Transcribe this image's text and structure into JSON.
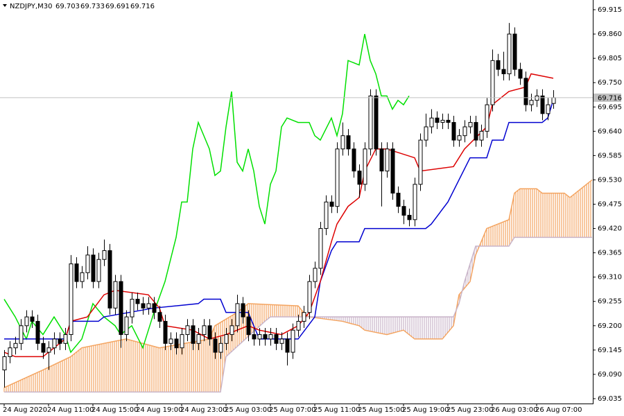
{
  "chart_data": {
    "type": "candlestick",
    "title": "NZDJPY,M30",
    "ohlc_header": [
      69.703,
      69.733,
      69.691,
      69.716
    ],
    "open": [
      69.1,
      69.13,
      69.15,
      69.16,
      69.2,
      69.22,
      69.21,
      69.16,
      69.14,
      69.15,
      69.17,
      69.16,
      69.18,
      69.34,
      69.3,
      69.32,
      69.36,
      69.3,
      69.35,
      69.37,
      69.24,
      69.3,
      69.18,
      69.22,
      69.26,
      69.25,
      69.24,
      69.25,
      69.23,
      69.21,
      69.16,
      69.17,
      69.15,
      69.18,
      69.2,
      69.16,
      69.18,
      69.2,
      69.17,
      69.14,
      69.16,
      69.18,
      69.2,
      69.25,
      69.22,
      69.18,
      69.17,
      69.18,
      69.17,
      69.18,
      69.16,
      69.17,
      69.14,
      69.19,
      69.21,
      69.23,
      69.3,
      69.33,
      69.42,
      69.48,
      69.47,
      69.6,
      69.63,
      69.6,
      69.55,
      69.52,
      69.6,
      69.72,
      69.6,
      69.55,
      69.6,
      69.5,
      69.47,
      69.45,
      69.44,
      69.52,
      69.62,
      69.65,
      69.67,
      69.66,
      69.665,
      69.66,
      69.62,
      69.63,
      69.65,
      69.66,
      69.62,
      69.64,
      69.7,
      69.8,
      69.78,
      69.77,
      69.86,
      69.78,
      69.76,
      69.7,
      69.71,
      69.72,
      69.68,
      69.703
    ],
    "high": [
      69.145,
      69.165,
      69.175,
      69.215,
      69.235,
      69.235,
      69.225,
      69.175,
      69.165,
      69.185,
      69.185,
      69.195,
      69.36,
      69.355,
      69.335,
      69.38,
      69.375,
      69.365,
      69.395,
      69.385,
      69.315,
      69.315,
      69.235,
      69.275,
      69.275,
      69.265,
      69.265,
      69.265,
      69.245,
      69.225,
      69.185,
      69.185,
      69.195,
      69.215,
      69.215,
      69.195,
      69.215,
      69.215,
      69.185,
      69.175,
      69.195,
      69.215,
      69.27,
      69.265,
      69.235,
      69.195,
      69.195,
      69.195,
      69.195,
      69.195,
      69.185,
      69.185,
      69.205,
      69.225,
      69.245,
      69.315,
      69.345,
      69.435,
      69.495,
      69.495,
      69.615,
      69.66,
      69.645,
      69.615,
      69.565,
      69.615,
      69.735,
      69.735,
      69.615,
      69.615,
      69.615,
      69.515,
      69.485,
      69.465,
      69.535,
      69.635,
      69.68,
      69.69,
      69.685,
      69.68,
      69.68,
      69.675,
      69.645,
      69.665,
      69.675,
      69.675,
      69.655,
      69.715,
      69.825,
      69.815,
      69.82,
      69.885,
      69.875,
      69.795,
      69.775,
      69.725,
      69.735,
      69.735,
      69.715,
      69.733
    ],
    "low": [
      69.06,
      69.115,
      69.135,
      69.145,
      69.185,
      69.195,
      69.145,
      69.125,
      69.1,
      69.135,
      69.145,
      69.145,
      69.165,
      69.285,
      69.285,
      69.305,
      69.285,
      69.285,
      69.335,
      69.225,
      69.225,
      69.15,
      69.165,
      69.205,
      69.235,
      69.225,
      69.225,
      69.215,
      69.195,
      69.145,
      69.145,
      69.135,
      69.135,
      69.165,
      69.145,
      69.145,
      69.165,
      69.155,
      69.125,
      69.125,
      69.145,
      69.165,
      69.185,
      69.205,
      69.165,
      69.155,
      69.155,
      69.155,
      69.155,
      69.145,
      69.145,
      69.11,
      69.125,
      69.175,
      69.195,
      69.215,
      69.285,
      69.315,
      69.405,
      69.455,
      69.455,
      69.585,
      69.585,
      69.535,
      69.49,
      69.505,
      69.585,
      69.585,
      69.47,
      69.535,
      69.485,
      69.455,
      69.43,
      69.425,
      69.425,
      69.505,
      69.605,
      69.635,
      69.645,
      69.645,
      69.645,
      69.605,
      69.605,
      69.615,
      69.635,
      69.605,
      69.605,
      69.625,
      69.685,
      69.765,
      69.755,
      69.755,
      69.765,
      69.745,
      69.685,
      69.685,
      69.695,
      69.665,
      69.665,
      69.691
    ],
    "close": [
      69.13,
      69.15,
      69.16,
      69.2,
      69.22,
      69.21,
      69.16,
      69.14,
      69.15,
      69.17,
      69.16,
      69.18,
      69.34,
      69.3,
      69.32,
      69.36,
      69.3,
      69.35,
      69.37,
      69.24,
      69.3,
      69.18,
      69.22,
      69.26,
      69.25,
      69.24,
      69.25,
      69.23,
      69.21,
      69.16,
      69.17,
      69.15,
      69.18,
      69.2,
      69.16,
      69.18,
      69.2,
      69.17,
      69.14,
      69.16,
      69.18,
      69.2,
      69.25,
      69.22,
      69.18,
      69.17,
      69.18,
      69.17,
      69.18,
      69.16,
      69.17,
      69.14,
      69.19,
      69.21,
      69.23,
      69.3,
      69.33,
      69.42,
      69.48,
      69.47,
      69.6,
      69.63,
      69.6,
      69.55,
      69.52,
      69.6,
      69.72,
      69.6,
      69.55,
      69.6,
      69.5,
      69.47,
      69.45,
      69.44,
      69.52,
      69.62,
      69.65,
      69.67,
      69.66,
      69.665,
      69.66,
      69.62,
      69.63,
      69.65,
      69.66,
      69.62,
      69.64,
      69.7,
      69.8,
      69.78,
      69.77,
      69.86,
      69.78,
      69.76,
      69.7,
      69.71,
      69.72,
      69.68,
      69.7,
      69.716
    ],
    "ylim": [
      69.024,
      69.937
    ],
    "yticks": [
      69.915,
      {
        "value": 69.86,
        "label": "69.860"
      },
      69.805,
      {
        "value": 69.75,
        "label": "69.750"
      },
      69.695,
      {
        "value": 69.64,
        "label": "69.640"
      },
      69.585,
      {
        "value": 69.53,
        "label": "69.530"
      },
      69.475,
      {
        "value": 69.42,
        "label": "69.420"
      },
      69.365,
      {
        "value": 69.31,
        "label": "69.310"
      },
      69.255,
      {
        "value": 69.2,
        "label": "69.200"
      },
      69.145,
      {
        "value": 69.09,
        "label": "69.090"
      },
      69.035
    ],
    "xlim": [
      -0.75,
      106.125
    ],
    "xticks": [
      {
        "value": 0,
        "label": "24 Aug 2020"
      },
      {
        "value": 8,
        "label": "24 Aug 11:00"
      },
      {
        "value": 16,
        "label": "24 Aug 15:00"
      },
      {
        "value": 24,
        "label": "24 Aug 19:00"
      },
      {
        "value": 32,
        "label": "24 Aug 23:00"
      },
      {
        "value": 40,
        "label": "25 Aug 03:00"
      },
      {
        "value": 48,
        "label": "25 Aug 07:00"
      },
      {
        "value": 56,
        "label": "25 Aug 11:00"
      },
      {
        "value": 64,
        "label": "25 Aug 15:00"
      },
      {
        "value": 72,
        "label": "25 Aug 19:00"
      },
      {
        "value": 80,
        "label": "25 Aug 23:00"
      },
      {
        "value": 88,
        "label": "26 Aug 03:00"
      },
      {
        "value": 96,
        "label": "26 Aug 07:00"
      }
    ],
    "current_price": 69.716,
    "cloud": [
      {
        "color": "#f4a460",
        "x": [
          0,
          7,
          12,
          14,
          22,
          28,
          37,
          38,
          42,
          44,
          53,
          54,
          55,
          61,
          64,
          65,
          69,
          72,
          74,
          79,
          81,
          82,
          84,
          85,
          87,
          89,
          91,
          92,
          93,
          96,
          97,
          101,
          102,
          103,
          106
        ],
        "values": [
          69.06,
          69.1,
          69.13,
          69.15,
          69.17,
          69.15,
          69.17,
          69.2,
          69.23,
          69.25,
          69.245,
          69.23,
          69.22,
          69.21,
          69.2,
          69.19,
          69.18,
          69.19,
          69.17,
          69.17,
          69.2,
          69.27,
          69.3,
          69.36,
          69.42,
          69.43,
          69.44,
          69.5,
          69.51,
          69.51,
          69.5,
          69.5,
          69.49,
          69.5,
          69.53
        ]
      },
      {
        "color": "#c8b4c8",
        "x": [
          0,
          39,
          40,
          47,
          48,
          81,
          82,
          83,
          85,
          91,
          92,
          106
        ],
        "values": [
          69.05,
          69.05,
          69.13,
          69.21,
          69.22,
          69.22,
          69.25,
          69.3,
          69.38,
          69.38,
          69.4,
          69.4
        ]
      }
    ],
    "lines": [
      {
        "color": "#00e000",
        "x": [
          0,
          2,
          4,
          5,
          7,
          9,
          11,
          12,
          14,
          16,
          18,
          20,
          21,
          23,
          25,
          27,
          29,
          31,
          32,
          33,
          34,
          35,
          37,
          38,
          39,
          40,
          41,
          42,
          43,
          44,
          45,
          46,
          47,
          48,
          49,
          50,
          51,
          53,
          55,
          56,
          57,
          59,
          60,
          61,
          62,
          64,
          65,
          66,
          67,
          68,
          69,
          70,
          71,
          72,
          73
        ],
        "values": [
          69.26,
          69.22,
          69.17,
          69.21,
          69.18,
          69.22,
          69.18,
          69.14,
          69.17,
          69.25,
          69.22,
          69.2,
          69.18,
          69.2,
          69.15,
          69.23,
          69.3,
          69.4,
          69.48,
          69.48,
          69.6,
          69.66,
          69.6,
          69.54,
          69.55,
          69.65,
          69.73,
          69.57,
          69.55,
          69.6,
          69.55,
          69.47,
          69.43,
          69.52,
          69.55,
          69.65,
          69.67,
          69.66,
          69.66,
          69.63,
          69.62,
          69.67,
          69.63,
          69.68,
          69.8,
          69.79,
          69.86,
          69.8,
          69.77,
          69.72,
          69.72,
          69.69,
          69.71,
          69.7,
          69.72
        ]
      },
      {
        "color": "#0000d0",
        "x": [
          0,
          11,
          12,
          17,
          18,
          27,
          35,
          36,
          39,
          40,
          44,
          46,
          53,
          56,
          57,
          59,
          60,
          64,
          65,
          76,
          77,
          80,
          82,
          84,
          87,
          88,
          90,
          91,
          97,
          98,
          99
        ],
        "values": [
          69.17,
          69.17,
          69.21,
          69.21,
          69.22,
          69.24,
          69.25,
          69.26,
          69.26,
          69.23,
          69.23,
          69.17,
          69.17,
          69.22,
          69.3,
          69.37,
          69.39,
          69.39,
          69.42,
          69.42,
          69.43,
          69.48,
          69.53,
          69.58,
          69.58,
          69.62,
          69.62,
          69.66,
          69.66,
          69.67,
          69.71
        ]
      },
      {
        "color": "#dd0000",
        "x": [
          0,
          2,
          7,
          11,
          12,
          15,
          18,
          20,
          26,
          28,
          29,
          34,
          37,
          40,
          44,
          46,
          50,
          53,
          55,
          57,
          59,
          60,
          62,
          64,
          65,
          67,
          69,
          74,
          75,
          81,
          83,
          87,
          88,
          91,
          94,
          95,
          99
        ],
        "values": [
          69.14,
          69.13,
          69.13,
          69.17,
          69.21,
          69.22,
          69.27,
          69.28,
          69.27,
          69.24,
          69.2,
          69.19,
          69.17,
          69.18,
          69.2,
          69.19,
          69.18,
          69.2,
          69.23,
          69.3,
          69.39,
          69.43,
          69.47,
          69.49,
          69.55,
          69.6,
          69.6,
          69.58,
          69.55,
          69.56,
          69.6,
          69.65,
          69.7,
          69.73,
          69.74,
          69.77,
          69.76
        ]
      }
    ]
  }
}
